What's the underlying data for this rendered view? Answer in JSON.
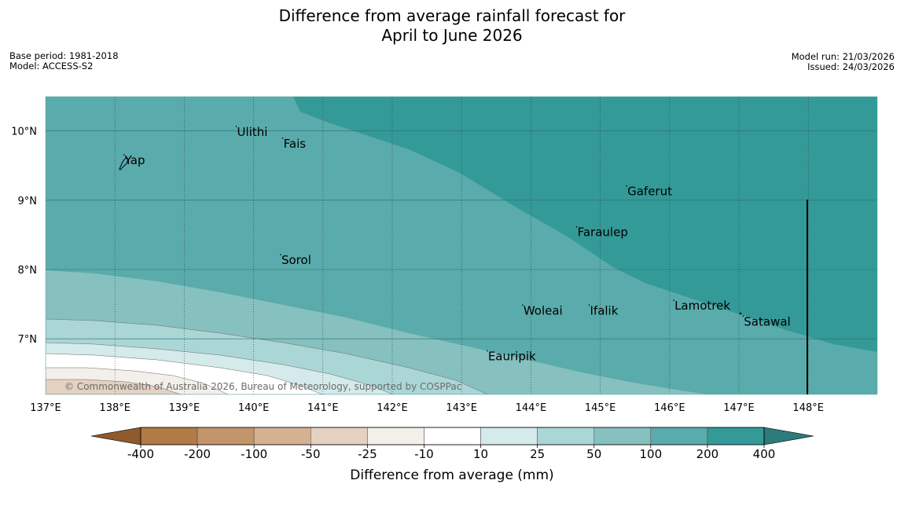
{
  "title_line1": "Difference from average rainfall forecast for",
  "title_line2": "April to June 2026",
  "meta_left": {
    "base_period": "Base period: 1981-2018",
    "model": "Model: ACCESS-S2"
  },
  "meta_right": {
    "model_run": "Model run: 21/03/2026",
    "issued": "Issued: 24/03/2026"
  },
  "map": {
    "lon_range": [
      137,
      149
    ],
    "lat_range": [
      6.2,
      10.5
    ],
    "lon_ticks": [
      {
        "value": 137,
        "label": "137°E"
      },
      {
        "value": 138,
        "label": "138°E"
      },
      {
        "value": 139,
        "label": "139°E"
      },
      {
        "value": 140,
        "label": "140°E"
      },
      {
        "value": 141,
        "label": "141°E"
      },
      {
        "value": 142,
        "label": "142°E"
      },
      {
        "value": 143,
        "label": "143°E"
      },
      {
        "value": 144,
        "label": "144°E"
      },
      {
        "value": 145,
        "label": "145°E"
      },
      {
        "value": 146,
        "label": "146°E"
      },
      {
        "value": 147,
        "label": "147°E"
      },
      {
        "value": 148,
        "label": "148°E"
      }
    ],
    "lat_ticks": [
      {
        "value": 10,
        "label": "10°N"
      },
      {
        "value": 9,
        "label": "9°N"
      },
      {
        "value": 8,
        "label": "8°N"
      },
      {
        "value": 7,
        "label": "7°N"
      }
    ],
    "places": [
      {
        "name": "Ulithi",
        "lon": 139.75,
        "lat": 9.93
      },
      {
        "name": "Fais",
        "lon": 140.42,
        "lat": 9.76
      },
      {
        "name": "Yap",
        "lon": 138.13,
        "lat": 9.52
      },
      {
        "name": "Gaferut",
        "lon": 145.38,
        "lat": 9.07
      },
      {
        "name": "Faraulep",
        "lon": 144.66,
        "lat": 8.48
      },
      {
        "name": "Sorol",
        "lon": 140.39,
        "lat": 8.08
      },
      {
        "name": "Lamotrek",
        "lon": 146.06,
        "lat": 7.42
      },
      {
        "name": "Woleai",
        "lon": 143.88,
        "lat": 7.35
      },
      {
        "name": "Ifalik",
        "lon": 144.84,
        "lat": 7.35
      },
      {
        "name": "Satawal",
        "lon": 147.06,
        "lat": 7.19
      },
      {
        "name": "Eauripik",
        "lon": 143.37,
        "lat": 6.69
      }
    ],
    "copyright": "© Commonwealth of Australia 2026, Bureau of Meteorology, supported by COSPPac"
  },
  "colorbar": {
    "label": "Difference from average (mm)",
    "ticks": [
      "-400",
      "-200",
      "-100",
      "-50",
      "-25",
      "-10",
      "10",
      "25",
      "50",
      "100",
      "200",
      "400"
    ],
    "colors": [
      "#8e5a2e",
      "#b27a45",
      "#c3956b",
      "#d5b192",
      "#e4d1c1",
      "#f3efea",
      "#ffffff",
      "#d5eaea",
      "#abd6d6",
      "#86c0bf",
      "#5aabab",
      "#339a98",
      "#2e7b7b"
    ]
  }
}
